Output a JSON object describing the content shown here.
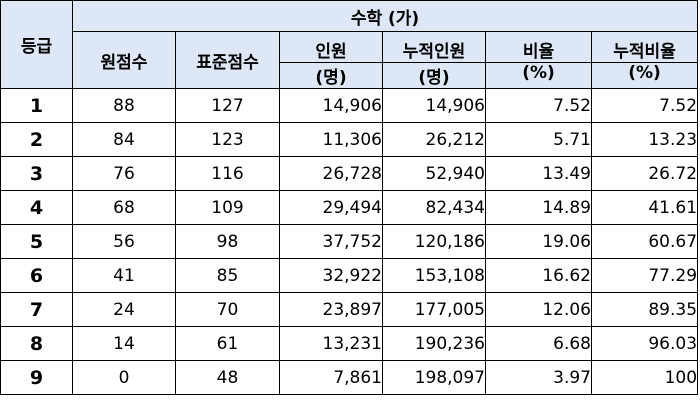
{
  "table": {
    "group_header": "수학 (가)",
    "headers": {
      "grade": "등급",
      "raw": "원점수",
      "standard": "표준점수",
      "count_top": "인원",
      "count_unit": "(명)",
      "cum_count_top": "누적인원",
      "cum_count_unit": "(명)",
      "ratio_top": "비율",
      "ratio_unit": "(%)",
      "cum_ratio_top": "누적비율",
      "cum_ratio_unit": "(%)"
    },
    "rows": [
      {
        "grade": "1",
        "raw": "88",
        "standard": "127",
        "count": "14,906",
        "cum_count": "14,906",
        "ratio": "7.52",
        "cum_ratio": "7.52"
      },
      {
        "grade": "2",
        "raw": "84",
        "standard": "123",
        "count": "11,306",
        "cum_count": "26,212",
        "ratio": "5.71",
        "cum_ratio": "13.23"
      },
      {
        "grade": "3",
        "raw": "76",
        "standard": "116",
        "count": "26,728",
        "cum_count": "52,940",
        "ratio": "13.49",
        "cum_ratio": "26.72"
      },
      {
        "grade": "4",
        "raw": "68",
        "standard": "109",
        "count": "29,494",
        "cum_count": "82,434",
        "ratio": "14.89",
        "cum_ratio": "41.61"
      },
      {
        "grade": "5",
        "raw": "56",
        "standard": "98",
        "count": "37,752",
        "cum_count": "120,186",
        "ratio": "19.06",
        "cum_ratio": "60.67"
      },
      {
        "grade": "6",
        "raw": "41",
        "standard": "85",
        "count": "32,922",
        "cum_count": "153,108",
        "ratio": "16.62",
        "cum_ratio": "77.29"
      },
      {
        "grade": "7",
        "raw": "24",
        "standard": "70",
        "count": "23,897",
        "cum_count": "177,005",
        "ratio": "12.06",
        "cum_ratio": "89.35"
      },
      {
        "grade": "8",
        "raw": "14",
        "standard": "61",
        "count": "13,231",
        "cum_count": "190,236",
        "ratio": "6.68",
        "cum_ratio": "96.03"
      },
      {
        "grade": "9",
        "raw": "0",
        "standard": "48",
        "count": "7,861",
        "cum_count": "198,097",
        "ratio": "3.97",
        "cum_ratio": "100"
      }
    ],
    "colors": {
      "header_bg": "#dde7f5",
      "border": "#000000"
    }
  }
}
